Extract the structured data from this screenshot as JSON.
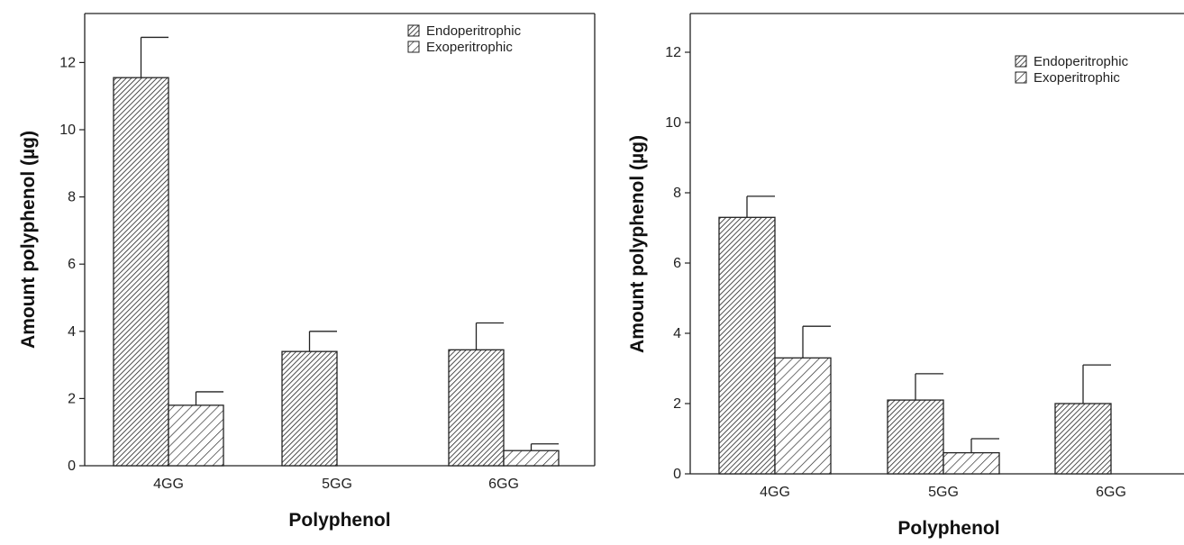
{
  "chart_data": [
    {
      "type": "bar",
      "xlabel": "Polyphenol",
      "ylabel": "Amount polyphenol (µg)",
      "categories": [
        "4GG",
        "5GG",
        "6GG"
      ],
      "ylim": [
        0,
        13
      ],
      "yticks": [
        0,
        2,
        4,
        6,
        8,
        10,
        12
      ],
      "legend_position": "top-right",
      "grid": false,
      "series": [
        {
          "name": "Endoperitrophic",
          "values": [
            11.55,
            3.4,
            3.45
          ],
          "errors": [
            1.2,
            0.6,
            0.8
          ],
          "hatch": "dense"
        },
        {
          "name": "Exoperitrophic",
          "values": [
            1.8,
            0.0,
            0.45
          ],
          "errors": [
            0.4,
            0.0,
            0.2
          ],
          "hatch": "sparse"
        }
      ]
    },
    {
      "type": "bar",
      "xlabel": "Polyphenol",
      "ylabel": "Amount polyphenol (µg)",
      "categories": [
        "4GG",
        "5GG",
        "6GG"
      ],
      "ylim": [
        0,
        13
      ],
      "yticks": [
        0,
        2,
        4,
        6,
        8,
        10,
        12
      ],
      "legend_position": "top-right",
      "grid": false,
      "series": [
        {
          "name": "Endoperitrophic",
          "values": [
            7.3,
            2.1,
            2.0
          ],
          "errors": [
            0.6,
            0.75,
            1.1
          ],
          "hatch": "dense"
        },
        {
          "name": "Exoperitrophic",
          "values": [
            3.3,
            0.6,
            0.0
          ],
          "errors": [
            0.9,
            0.4,
            0.0
          ],
          "hatch": "sparse"
        }
      ]
    }
  ]
}
